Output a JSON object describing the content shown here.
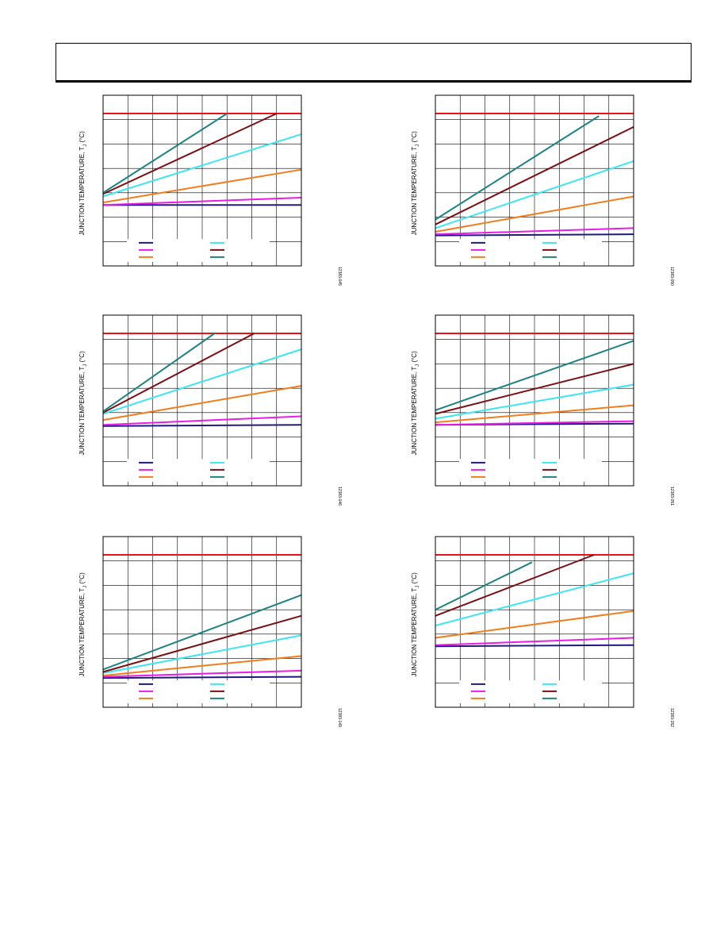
{
  "page": {
    "header_text": ""
  },
  "colors": {
    "limit": "#e8141b",
    "s1": "#1f1a80",
    "s2": "#e81ee6",
    "s3": "#f07d1e",
    "s4": "#3ee6f0",
    "s5": "#7a0f14",
    "s6": "#1f8282"
  },
  "chart_data": [
    {
      "type": "line",
      "ylabel_main": "JUNCTION TEMPERATURE, T",
      "ylabel_sub": "J",
      "ylabel_unit": " (°C)",
      "figure_code": "12383-045",
      "xlim": [
        0,
        8
      ],
      "ylim": [
        0,
        7
      ],
      "grid": true,
      "legend_placement": "bottom-left",
      "series": [
        {
          "color_key": "limit",
          "x": [
            0,
            8
          ],
          "y": [
            6.25,
            6.25
          ]
        },
        {
          "color_key": "s1",
          "x": [
            0,
            8
          ],
          "y": [
            2.5,
            2.5
          ]
        },
        {
          "color_key": "s2",
          "x": [
            0,
            8
          ],
          "y": [
            2.5,
            2.8
          ]
        },
        {
          "color_key": "s3",
          "x": [
            0,
            8
          ],
          "y": [
            2.6,
            3.95
          ]
        },
        {
          "color_key": "s4",
          "x": [
            0,
            8
          ],
          "y": [
            2.85,
            5.4
          ]
        },
        {
          "color_key": "s5",
          "x": [
            0,
            7
          ],
          "y": [
            2.95,
            6.25
          ]
        },
        {
          "color_key": "s6",
          "x": [
            0,
            5
          ],
          "y": [
            3.0,
            6.25
          ]
        }
      ]
    },
    {
      "type": "line",
      "ylabel_main": "JUNCTION TEMPERATURE, T",
      "ylabel_sub": "J",
      "ylabel_unit": " (°C)",
      "figure_code": "12383-050",
      "xlim": [
        0,
        8
      ],
      "ylim": [
        0,
        7
      ],
      "grid": true,
      "legend_placement": "bottom-left",
      "series": [
        {
          "color_key": "limit",
          "x": [
            0,
            8
          ],
          "y": [
            6.25,
            6.25
          ]
        },
        {
          "color_key": "s1",
          "x": [
            0,
            8
          ],
          "y": [
            1.25,
            1.3
          ]
        },
        {
          "color_key": "s2",
          "x": [
            0,
            8
          ],
          "y": [
            1.3,
            1.55
          ]
        },
        {
          "color_key": "s3",
          "x": [
            0,
            8
          ],
          "y": [
            1.4,
            2.85
          ]
        },
        {
          "color_key": "s4",
          "x": [
            0,
            8
          ],
          "y": [
            1.55,
            4.3
          ]
        },
        {
          "color_key": "s5",
          "x": [
            0,
            8
          ],
          "y": [
            1.7,
            5.7
          ]
        },
        {
          "color_key": "s6",
          "x": [
            0,
            6.6
          ],
          "y": [
            1.9,
            6.15
          ]
        }
      ]
    },
    {
      "type": "line",
      "ylabel_main": "JUNCTION TEMPERATURE, T",
      "ylabel_sub": "J",
      "ylabel_unit": " (°C)",
      "figure_code": "12383-046",
      "xlim": [
        0,
        8
      ],
      "ylim": [
        0,
        7
      ],
      "grid": true,
      "legend_placement": "bottom-left",
      "series": [
        {
          "color_key": "limit",
          "x": [
            0,
            8
          ],
          "y": [
            6.25,
            6.25
          ]
        },
        {
          "color_key": "s1",
          "x": [
            0,
            8
          ],
          "y": [
            2.45,
            2.5
          ]
        },
        {
          "color_key": "s2",
          "x": [
            0,
            8
          ],
          "y": [
            2.5,
            2.85
          ]
        },
        {
          "color_key": "s3",
          "x": [
            0,
            8
          ],
          "y": [
            2.7,
            4.1
          ]
        },
        {
          "color_key": "s4",
          "x": [
            0,
            8
          ],
          "y": [
            2.95,
            5.6
          ]
        },
        {
          "color_key": "s5",
          "x": [
            0,
            6.1
          ],
          "y": [
            3.0,
            6.25
          ]
        },
        {
          "color_key": "s6",
          "x": [
            0,
            4.5
          ],
          "y": [
            3.05,
            6.25
          ]
        }
      ]
    },
    {
      "type": "line",
      "ylabel_main": "JUNCTION TEMPERATURE, T",
      "ylabel_sub": "J",
      "ylabel_unit": " (°C)",
      "figure_code": "12383-051",
      "xlim": [
        0,
        8
      ],
      "ylim": [
        0,
        7
      ],
      "grid": true,
      "legend_placement": "bottom-left",
      "series": [
        {
          "color_key": "limit",
          "x": [
            0,
            8
          ],
          "y": [
            6.25,
            6.25
          ]
        },
        {
          "color_key": "s1",
          "x": [
            0,
            8
          ],
          "y": [
            2.5,
            2.55
          ]
        },
        {
          "color_key": "s2",
          "x": [
            0,
            8
          ],
          "y": [
            2.5,
            2.65
          ]
        },
        {
          "color_key": "s3",
          "x": [
            0,
            8
          ],
          "y": [
            2.6,
            3.3
          ]
        },
        {
          "color_key": "s4",
          "x": [
            0,
            8
          ],
          "y": [
            2.75,
            4.15
          ]
        },
        {
          "color_key": "s5",
          "x": [
            0,
            8
          ],
          "y": [
            2.95,
            5.0
          ]
        },
        {
          "color_key": "s6",
          "x": [
            0,
            8
          ],
          "y": [
            3.1,
            5.95
          ]
        }
      ]
    },
    {
      "type": "line",
      "ylabel_main": "JUNCTION TEMPERATURE, T",
      "ylabel_sub": "J",
      "ylabel_unit": " (°C)",
      "figure_code": "12383-149",
      "xlim": [
        0,
        8
      ],
      "ylim": [
        0,
        7
      ],
      "grid": true,
      "legend_placement": "bottom-left",
      "series": [
        {
          "color_key": "limit",
          "x": [
            0,
            8
          ],
          "y": [
            6.25,
            6.25
          ]
        },
        {
          "color_key": "s1",
          "x": [
            0,
            8
          ],
          "y": [
            1.2,
            1.25
          ]
        },
        {
          "color_key": "s2",
          "x": [
            0,
            8
          ],
          "y": [
            1.25,
            1.5
          ]
        },
        {
          "color_key": "s3",
          "x": [
            0,
            8
          ],
          "y": [
            1.3,
            2.1
          ]
        },
        {
          "color_key": "s4",
          "x": [
            0,
            8
          ],
          "y": [
            1.4,
            2.95
          ]
        },
        {
          "color_key": "s5",
          "x": [
            0,
            8
          ],
          "y": [
            1.45,
            3.75
          ]
        },
        {
          "color_key": "s6",
          "x": [
            0,
            8
          ],
          "y": [
            1.55,
            4.6
          ]
        }
      ]
    },
    {
      "type": "line",
      "ylabel_main": "JUNCTION TEMPERATURE, T",
      "ylabel_sub": "J",
      "ylabel_unit": " (°C)",
      "figure_code": "12383-152",
      "xlim": [
        0,
        8
      ],
      "ylim": [
        0,
        7
      ],
      "grid": true,
      "legend_placement": "bottom-left",
      "series": [
        {
          "color_key": "limit",
          "x": [
            0,
            8
          ],
          "y": [
            6.25,
            6.25
          ]
        },
        {
          "color_key": "s1",
          "x": [
            0,
            8
          ],
          "y": [
            2.5,
            2.55
          ]
        },
        {
          "color_key": "s2",
          "x": [
            0,
            8
          ],
          "y": [
            2.55,
            2.85
          ]
        },
        {
          "color_key": "s3",
          "x": [
            0,
            8
          ],
          "y": [
            2.85,
            3.95
          ]
        },
        {
          "color_key": "s4",
          "x": [
            0,
            8
          ],
          "y": [
            3.35,
            5.5
          ]
        },
        {
          "color_key": "s5",
          "x": [
            0,
            6.4
          ],
          "y": [
            3.75,
            6.25
          ]
        },
        {
          "color_key": "s6",
          "x": [
            0,
            3.9
          ],
          "y": [
            4.0,
            5.95
          ]
        }
      ]
    }
  ],
  "legend_layout": [
    [
      "s1",
      "s4"
    ],
    [
      "s2",
      "s5"
    ],
    [
      "s3",
      "s6"
    ]
  ]
}
